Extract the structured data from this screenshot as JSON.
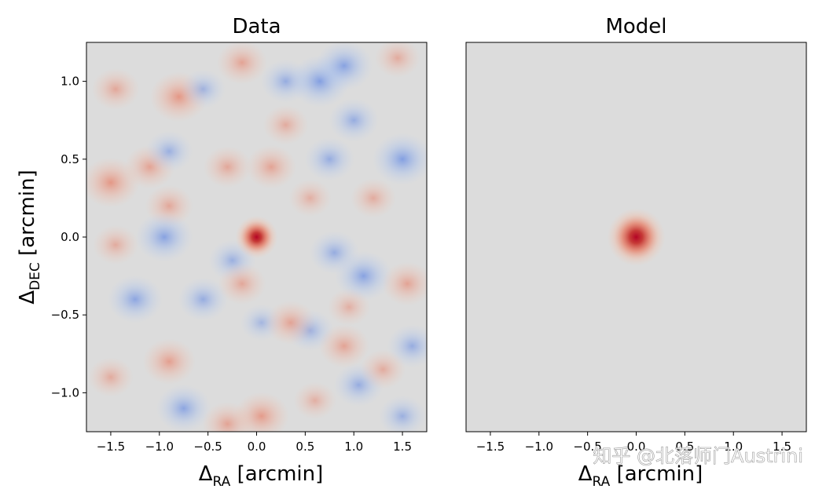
{
  "chart_data": [
    {
      "type": "heatmap",
      "title": "Data",
      "xlabel": {
        "base": "Δ",
        "sub": "RA",
        "rest": " [arcmin]"
      },
      "ylabel": {
        "base": "Δ",
        "sub": "DEC",
        "rest": " [arcmin]"
      },
      "xlim": [
        -1.75,
        1.75
      ],
      "ylim": [
        -1.25,
        1.25
      ],
      "xticks": [
        -1.5,
        -1.0,
        -0.5,
        0.0,
        0.5,
        1.0,
        1.5
      ],
      "xtick_labels": [
        "−1.5",
        "−1.0",
        "−0.5",
        "0.0",
        "0.5",
        "1.0",
        "1.5"
      ],
      "yticks": [
        1.0,
        0.5,
        0.0,
        -0.5,
        -1.0
      ],
      "ytick_labels": [
        "1.0",
        "0.5",
        "0.0",
        "−0.5",
        "−1.0"
      ],
      "colormap": "coolwarm",
      "background_color": "#dcdcdc",
      "positive_color": "#b40426",
      "negative_color": "#3b4cc0",
      "source_peak": {
        "x": 0.0,
        "y": 0.0,
        "amplitude": 1.0
      },
      "blobs": [
        {
          "x": -0.8,
          "y": 0.9,
          "a": 0.45
        },
        {
          "x": -1.5,
          "y": 0.35,
          "a": 0.45
        },
        {
          "x": -1.1,
          "y": 0.45,
          "a": 0.3
        },
        {
          "x": -0.3,
          "y": 0.45,
          "a": 0.25
        },
        {
          "x": 0.15,
          "y": 0.45,
          "a": 0.3
        },
        {
          "x": 0.3,
          "y": 0.72,
          "a": 0.2
        },
        {
          "x": -1.45,
          "y": 0.95,
          "a": 0.25
        },
        {
          "x": -0.15,
          "y": 1.12,
          "a": 0.3
        },
        {
          "x": -0.9,
          "y": 0.2,
          "a": 0.25
        },
        {
          "x": 0.3,
          "y": 1.0,
          "a": -0.3
        },
        {
          "x": 0.65,
          "y": 1.0,
          "a": -0.5
        },
        {
          "x": 0.9,
          "y": 1.1,
          "a": -0.45
        },
        {
          "x": 1.5,
          "y": 0.5,
          "a": -0.5
        },
        {
          "x": 0.75,
          "y": 0.5,
          "a": -0.3
        },
        {
          "x": 1.0,
          "y": 0.75,
          "a": -0.3
        },
        {
          "x": -0.55,
          "y": 0.95,
          "a": -0.2
        },
        {
          "x": -0.9,
          "y": 0.55,
          "a": -0.25
        },
        {
          "x": 1.45,
          "y": 1.15,
          "a": 0.2
        },
        {
          "x": 1.2,
          "y": 0.25,
          "a": 0.2
        },
        {
          "x": 0.55,
          "y": 0.25,
          "a": 0.15
        },
        {
          "x": -0.95,
          "y": 0.0,
          "a": -0.45
        },
        {
          "x": -0.25,
          "y": -0.15,
          "a": -0.25
        },
        {
          "x": -1.25,
          "y": -0.4,
          "a": -0.4
        },
        {
          "x": -0.55,
          "y": -0.4,
          "a": -0.3
        },
        {
          "x": 1.1,
          "y": -0.25,
          "a": -0.45
        },
        {
          "x": 0.8,
          "y": -0.1,
          "a": -0.3
        },
        {
          "x": 0.55,
          "y": -0.6,
          "a": -0.25
        },
        {
          "x": 1.6,
          "y": -0.7,
          "a": -0.3
        },
        {
          "x": -0.75,
          "y": -1.1,
          "a": -0.4
        },
        {
          "x": 1.05,
          "y": -0.95,
          "a": -0.3
        },
        {
          "x": 1.5,
          "y": -1.15,
          "a": -0.25
        },
        {
          "x": 0.05,
          "y": -0.55,
          "a": -0.15
        },
        {
          "x": -1.45,
          "y": -0.05,
          "a": 0.2
        },
        {
          "x": -0.15,
          "y": -0.3,
          "a": 0.25
        },
        {
          "x": 0.95,
          "y": -0.45,
          "a": 0.15
        },
        {
          "x": -0.9,
          "y": -0.8,
          "a": 0.35
        },
        {
          "x": 0.35,
          "y": -0.55,
          "a": 0.3
        },
        {
          "x": 0.9,
          "y": -0.7,
          "a": 0.3
        },
        {
          "x": 1.55,
          "y": -0.3,
          "a": 0.3
        },
        {
          "x": 0.05,
          "y": -1.15,
          "a": 0.4
        },
        {
          "x": -0.3,
          "y": -1.2,
          "a": 0.3
        },
        {
          "x": 1.3,
          "y": -0.85,
          "a": 0.2
        },
        {
          "x": -1.5,
          "y": -0.9,
          "a": 0.2
        },
        {
          "x": 0.6,
          "y": -1.05,
          "a": 0.15
        }
      ]
    },
    {
      "type": "heatmap",
      "title": "Model",
      "xlabel": {
        "base": "Δ",
        "sub": "RA",
        "rest": " [arcmin]"
      },
      "xlim": [
        -1.75,
        1.75
      ],
      "ylim": [
        -1.25,
        1.25
      ],
      "xticks": [
        -1.5,
        -1.0,
        -0.5,
        0.0,
        0.5,
        1.0,
        1.5
      ],
      "xtick_labels": [
        "−1.5",
        "−1.0",
        "−0.5",
        "0.0",
        "0.5",
        "1.0",
        "1.5"
      ],
      "colormap": "coolwarm",
      "background_color": "#dcdcdc",
      "source_peak": {
        "x": 0.0,
        "y": 0.0,
        "amplitude": 1.0
      }
    }
  ],
  "watermark": {
    "text": "知乎 @北落师门Austrini"
  }
}
